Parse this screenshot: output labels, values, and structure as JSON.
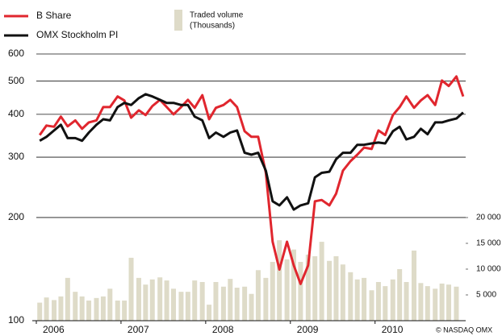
{
  "chart_data": {
    "type": "line",
    "x": [
      2006.04,
      2006.12,
      2006.21,
      2006.29,
      2006.37,
      2006.46,
      2006.54,
      2006.62,
      2006.71,
      2006.79,
      2006.87,
      2006.96,
      2007.04,
      2007.12,
      2007.21,
      2007.29,
      2007.37,
      2007.46,
      2007.54,
      2007.62,
      2007.71,
      2007.79,
      2007.87,
      2007.96,
      2008.04,
      2008.12,
      2008.21,
      2008.29,
      2008.37,
      2008.46,
      2008.54,
      2008.62,
      2008.71,
      2008.79,
      2008.87,
      2008.96,
      2009.04,
      2009.12,
      2009.21,
      2009.29,
      2009.37,
      2009.46,
      2009.54,
      2009.62,
      2009.71,
      2009.79,
      2009.87,
      2009.96,
      2010.04,
      2010.12,
      2010.21,
      2010.29,
      2010.37,
      2010.46,
      2010.54,
      2010.62,
      2010.71,
      2010.79,
      2010.87,
      2010.96,
      2011.04
    ],
    "xlim": [
      2006,
      2011.07
    ],
    "xticks": [
      2006,
      2007,
      2008,
      2009,
      2010
    ],
    "ylim": [
      100,
      600
    ],
    "yticks": [
      100,
      200,
      300,
      400,
      500,
      600
    ],
    "log_scale": true,
    "grid": true,
    "y2lim": [
      0,
      20000
    ],
    "y2ticks": [
      {
        "value": 5000,
        "label": "5 000"
      },
      {
        "value": 10000,
        "label": "10 000"
      },
      {
        "value": 15000,
        "label": "15 000"
      },
      {
        "value": 20000,
        "label": "20 000"
      }
    ],
    "y2_label": "(Thousands)",
    "source": "© NASDAQ OMX",
    "series": [
      {
        "name": "Traded volume",
        "type": "bar",
        "axis": "y2",
        "color": "#dedbc8",
        "values": [
          3500,
          4500,
          4000,
          4700,
          8300,
          5600,
          4700,
          3900,
          4400,
          4700,
          6200,
          3900,
          3900,
          12200,
          8300,
          7000,
          8000,
          8400,
          7800,
          6200,
          5600,
          5600,
          7800,
          7500,
          3100,
          7500,
          6600,
          8100,
          6400,
          6600,
          5200,
          9800,
          8300,
          11400,
          15600,
          11900,
          13800,
          11400,
          12800,
          12500,
          15300,
          11600,
          12500,
          10900,
          9400,
          8000,
          8300,
          5900,
          7500,
          6700,
          8000,
          10000,
          7500,
          13600,
          7300,
          6700,
          6200,
          7200,
          7000,
          6600,
          null
        ]
      },
      {
        "name": "B Share",
        "color": "#e0262e",
        "values": [
          348,
          371,
          368,
          394,
          369,
          384,
          363,
          379,
          384,
          420,
          420,
          451,
          439,
          391,
          411,
          398,
          423,
          441,
          420,
          400,
          420,
          441,
          418,
          455,
          387,
          418,
          426,
          441,
          420,
          357,
          344,
          344,
          270,
          170,
          141,
          170,
          145,
          128,
          145,
          223,
          225,
          217,
          235,
          274,
          292,
          305,
          320,
          317,
          359,
          348,
          398,
          420,
          451,
          418,
          439,
          455,
          426,
          502,
          484,
          516,
          451
        ]
      },
      {
        "name": "OMX Stockholm PI",
        "color": "#111111",
        "values": [
          335,
          344,
          359,
          373,
          341,
          341,
          335,
          354,
          373,
          387,
          384,
          420,
          432,
          426,
          446,
          458,
          451,
          441,
          432,
          432,
          426,
          426,
          394,
          384,
          341,
          354,
          344,
          354,
          359,
          309,
          305,
          309,
          274,
          223,
          217,
          229,
          211,
          217,
          220,
          262,
          270,
          272,
          296,
          309,
          309,
          326,
          326,
          329,
          331,
          329,
          357,
          368,
          338,
          344,
          363,
          350,
          379,
          379,
          384,
          389,
          405
        ]
      }
    ]
  }
}
